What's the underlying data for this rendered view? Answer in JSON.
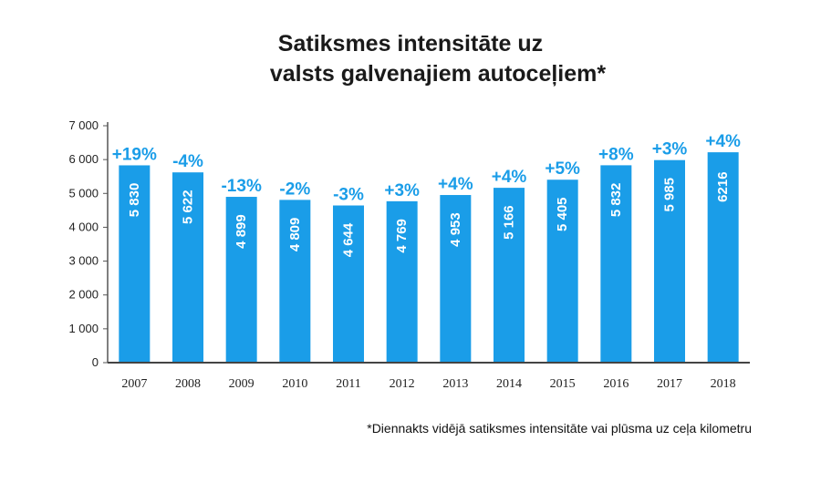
{
  "chart_data": {
    "type": "bar",
    "title_line1": "Satiksmes intensitāte uz",
    "title_line2": "valsts galvenajiem autoceļiem*",
    "xlabel": "",
    "ylabel": "",
    "ylim": [
      0,
      7000
    ],
    "yticks": [
      {
        "value": 0,
        "label": "0"
      },
      {
        "value": 1000,
        "label": "1 000"
      },
      {
        "value": 2000,
        "label": "2 000"
      },
      {
        "value": 3000,
        "label": "3 000"
      },
      {
        "value": 4000,
        "label": "4 000"
      },
      {
        "value": 5000,
        "label": "5 000"
      },
      {
        "value": 6000,
        "label": "6 000"
      },
      {
        "value": 7000,
        "label": "7 000"
      }
    ],
    "categories": [
      "2007",
      "2008",
      "2009",
      "2010",
      "2011",
      "2012",
      "2013",
      "2014",
      "2015",
      "2016",
      "2017",
      "2018"
    ],
    "values": [
      5830,
      5622,
      4899,
      4809,
      4644,
      4769,
      4953,
      5166,
      5405,
      5832,
      5985,
      6216
    ],
    "value_labels": [
      "5 830",
      "5 622",
      "4 899",
      "4 809",
      "4 644",
      "4 769",
      "4 953",
      "5 166",
      "5 405",
      "5 832",
      "5 985",
      "6216"
    ],
    "change_labels": [
      "+19%",
      "-4%",
      "-13%",
      "-2%",
      "-3%",
      "+3%",
      "+4%",
      "+4%",
      "+5%",
      "+8%",
      "+3%",
      "+4%"
    ],
    "bar_color": "#1a9de8",
    "grid": false
  },
  "footnote": "*Diennakts vidējā satiksmes intensitāte vai plūsma uz ceļa kilometru"
}
